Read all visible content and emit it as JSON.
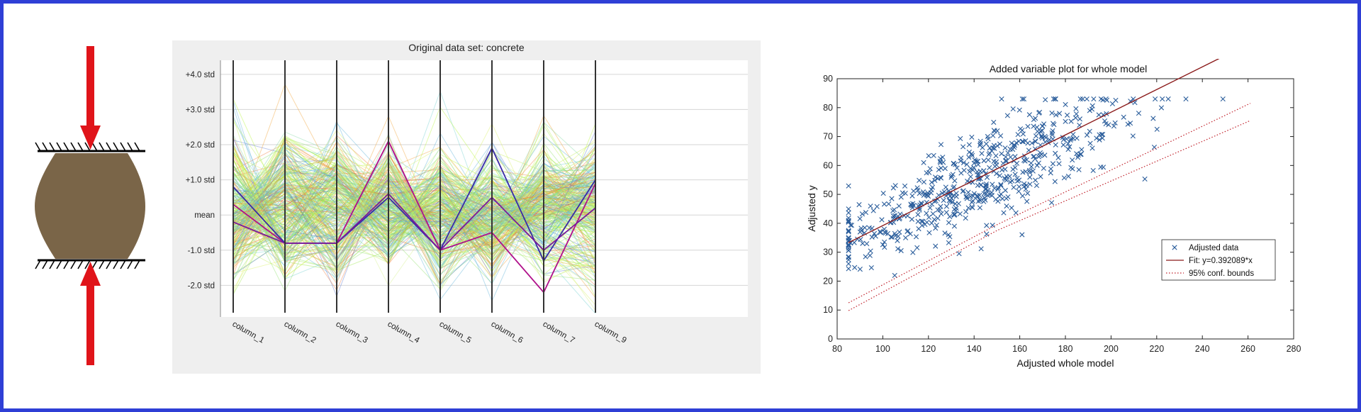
{
  "colors": {
    "frame": "#2f3fd6",
    "arrow": "#e0141a",
    "specimen": "#7a6548",
    "fit_line": "#8b1a1a",
    "marker": "#2a5d9b"
  },
  "chart_data": [
    {
      "type": "parallel-coordinates",
      "title": "Original data set: concrete",
      "axes": [
        "column_1",
        "column_2",
        "column_3",
        "column_4",
        "column_5",
        "column_6",
        "column_7",
        "column_9"
      ],
      "ytick_values": [
        4,
        3,
        2,
        1,
        0,
        -1,
        -2
      ],
      "ytick_labels": [
        "+4.0 std",
        "+3.0 std",
        "+2.0 std",
        "+1.0 std",
        "mean",
        "-1.0 std",
        "-2.0 std"
      ],
      "ylim": [
        -2.9,
        4.4
      ],
      "grid": true,
      "line_count": 300,
      "highlight_lines": [
        [
          0.3,
          -0.8,
          -0.8,
          2.1,
          -1.0,
          -0.5,
          -2.2,
          0.9
        ],
        [
          0.8,
          -0.8,
          -0.8,
          0.5,
          -1.0,
          1.9,
          -1.3,
          1.0
        ],
        [
          -0.2,
          -0.8,
          -0.8,
          0.6,
          -1.0,
          0.5,
          -1.0,
          0.2
        ]
      ]
    },
    {
      "type": "scatter",
      "title": "Added variable plot for whole model",
      "xlabel": "Adjusted whole model",
      "ylabel": "Adjusted y",
      "xlim": [
        80,
        280
      ],
      "ylim": [
        0,
        90
      ],
      "xticks": [
        80,
        100,
        120,
        140,
        160,
        180,
        200,
        220,
        240,
        260,
        280
      ],
      "yticks": [
        0,
        10,
        20,
        30,
        40,
        50,
        60,
        70,
        80,
        90
      ],
      "fit_slope": 0.392089,
      "fit_range": [
        85,
        261
      ],
      "conf_band": [
        {
          "x": 85,
          "lower": 9.8,
          "upper": 12.5
        },
        {
          "x": 150,
          "lower": 37.5,
          "upper": 39.5
        },
        {
          "x": 261,
          "lower": 75.5,
          "upper": 81.5
        }
      ],
      "point_count": 600,
      "legend": {
        "placement": "lower-right",
        "entries": [
          "Adjusted data",
          "Fit: y=0.392089*x",
          "95% conf. bounds"
        ]
      },
      "grid": false
    }
  ]
}
